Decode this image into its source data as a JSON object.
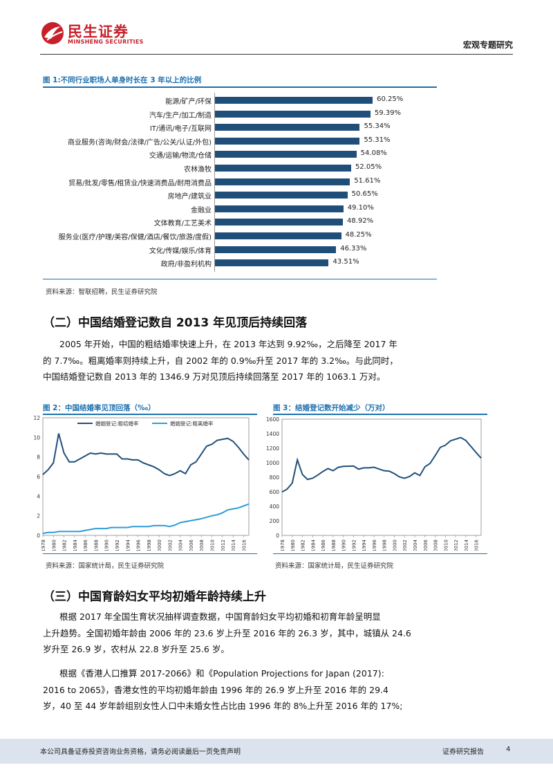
{
  "header": {
    "logo_cn": "民生证券",
    "logo_en": "MINSHENG SECURITIES",
    "title": "宏观专题研究"
  },
  "figure1": {
    "title": "图 1:不同行业职场人单身时长在 3 年以上的比例",
    "source": "资料来源：智联招聘，民生证券研究院"
  },
  "section2": {
    "heading": "（二）中国结婚登记数自 2013 年见顶后持续回落",
    "para1_line1": "2005 年开始，中国的粗结婚率快速上升，在 2013 年达到 9.92‰，之后降至 2017 年",
    "para1_line2": "的 7.7‰。粗离婚率则持续上升，自 2002 年的 0.9‰升至 2017 年的 3.2‰。与此同时，",
    "para1_line3": "中国结婚登记数自 2013 年的 1346.9 万对见顶后持续回落至 2017 年的 1063.1 万对。"
  },
  "figure2": {
    "title": "图 2：中国结婚率见顶回落（‰）",
    "source": "资料来源：国家统计局，民生证券研究院"
  },
  "figure3": {
    "title": "图 3：结婚登记数开始减少（万对）",
    "source": "资料来源：国家统计局，民生证券研究院"
  },
  "section3": {
    "heading": "（三）中国育龄妇女平均初婚年龄持续上升",
    "para1_line1": "根据 2017 年全国生育状况抽样调查数据，中国育龄妇女平均初婚和初育年龄呈明显",
    "para1_line2": "上升趋势。全国初婚年龄由 2006 年的 23.6 岁上升至 2016 年的 26.3 岁，其中，城镇从 24.6",
    "para1_line3": "岁升至 26.9 岁，农村从 22.8 岁升至 25.6 岁。",
    "para2_line1": "根据《香港人口推算 2017-2066》和《Population Projections for Japan (2017):",
    "para2_line2": "2016 to 2065》，香港女性的平均初婚年龄由 1996 年的 26.9 岁上升至 2016 年的 29.4",
    "para2_line3": "岁，40 至 44 岁年龄组别女性人口中未婚女性占比由 1996 年的 8%上升至 2016 年的 17%;"
  },
  "footer": {
    "disclaimer": "本公司具备证券投资咨询业务资格，请务必阅读最后一页免责声明",
    "report_type": "证券研究报告",
    "page": "4"
  },
  "chart_data": [
    {
      "type": "bar",
      "orientation": "horizontal",
      "categories": [
        "能源/矿产/环保",
        "汽车/生产/加工/制造",
        "IT/通讯/电子/互联网",
        "商业服务(咨询/财会/法律/广告/公关/认证/外包)",
        "交通/运输/物流/仓储",
        "农林渔牧",
        "贸易/批发/零售/租赁业/快速消费品/耐用消费品",
        "房地产/建筑业",
        "金融业",
        "文体教育/工艺美术",
        "服务业(医疗/护理/美容/保健/酒店/餐饮/旅游/度假)",
        "文化/传媒/娱乐/体育",
        "政府/非盈利机构"
      ],
      "values": [
        60.25,
        59.39,
        55.34,
        55.31,
        54.08,
        52.05,
        51.61,
        50.65,
        49.1,
        48.92,
        48.25,
        46.33,
        43.51
      ],
      "value_labels": [
        "60.25%",
        "59.39%",
        "55.34%",
        "55.31%",
        "54.08%",
        "52.05%",
        "51.61%",
        "50.65%",
        "49.10%",
        "48.92%",
        "48.25%",
        "46.33%",
        "43.51%"
      ],
      "bar_color": "#1f4e79"
    },
    {
      "type": "line",
      "x": [
        1978,
        1979,
        1980,
        1981,
        1982,
        1983,
        1984,
        1985,
        1986,
        1987,
        1988,
        1989,
        1990,
        1991,
        1992,
        1993,
        1994,
        1995,
        1996,
        1997,
        1998,
        1999,
        2000,
        2001,
        2002,
        2003,
        2004,
        2005,
        2006,
        2007,
        2008,
        2009,
        2010,
        2011,
        2012,
        2013,
        2014,
        2015,
        2016,
        2017
      ],
      "x_ticks": [
        "1978",
        "1980",
        "1982",
        "1984",
        "1986",
        "1988",
        "1990",
        "1992",
        "1994",
        "1996",
        "1998",
        "2000",
        "2002",
        "2004",
        "2006",
        "2008",
        "2010",
        "2012",
        "2014",
        "2016"
      ],
      "ylim": [
        0,
        12
      ],
      "y_ticks": [
        0,
        2,
        4,
        6,
        8,
        10,
        12
      ],
      "legend_position": "top",
      "series": [
        {
          "name": "婚姻登记:粗结婚率",
          "color": "#1f4e79",
          "values": [
            6.2,
            6.7,
            7.4,
            10.4,
            8.4,
            7.5,
            7.5,
            7.8,
            8.1,
            8.4,
            8.3,
            8.4,
            8.3,
            8.3,
            8.3,
            7.8,
            7.8,
            7.7,
            7.7,
            7.4,
            7.2,
            7.0,
            6.7,
            6.3,
            6.1,
            6.3,
            6.6,
            6.3,
            7.2,
            7.5,
            8.3,
            9.1,
            9.3,
            9.7,
            9.8,
            9.9,
            9.6,
            9.0,
            8.3,
            7.7
          ]
        },
        {
          "name": "婚姻登记:粗离婚率",
          "color": "#2e9bd6",
          "values": [
            0.2,
            0.3,
            0.3,
            0.4,
            0.4,
            0.4,
            0.4,
            0.4,
            0.5,
            0.6,
            0.7,
            0.7,
            0.7,
            0.8,
            0.8,
            0.8,
            0.8,
            0.9,
            0.9,
            0.9,
            0.9,
            1.0,
            1.0,
            1.0,
            0.9,
            1.05,
            1.3,
            1.4,
            1.5,
            1.6,
            1.7,
            1.85,
            2.0,
            2.1,
            2.3,
            2.6,
            2.7,
            2.8,
            3.0,
            3.2
          ]
        }
      ]
    },
    {
      "type": "line",
      "x": [
        1978,
        1979,
        1980,
        1981,
        1982,
        1983,
        1984,
        1985,
        1986,
        1987,
        1988,
        1989,
        1990,
        1991,
        1992,
        1993,
        1994,
        1995,
        1996,
        1997,
        1998,
        1999,
        2000,
        2001,
        2002,
        2003,
        2004,
        2005,
        2006,
        2007,
        2008,
        2009,
        2010,
        2011,
        2012,
        2013,
        2014,
        2015,
        2016,
        2017
      ],
      "x_ticks": [
        "1978",
        "1980",
        "1982",
        "1984",
        "1986",
        "1988",
        "1990",
        "1992",
        "1994",
        "1996",
        "1998",
        "2000",
        "2002",
        "2004",
        "2006",
        "2008",
        "2010",
        "2012",
        "2014",
        "2016"
      ],
      "ylim": [
        0,
        1600
      ],
      "y_ticks": [
        0,
        200,
        400,
        600,
        800,
        1000,
        1200,
        1400,
        1600
      ],
      "series": [
        {
          "color": "#1f4e79",
          "values": [
            597,
            637,
            720,
            1040,
            837,
            770,
            787,
            830,
            880,
            920,
            890,
            937,
            950,
            952,
            955,
            912,
            930,
            930,
            938,
            914,
            890,
            885,
            850,
            805,
            786,
            811,
            861,
            824,
            945,
            991,
            1098,
            1212,
            1241,
            1302,
            1324,
            1347,
            1307,
            1225,
            1142,
            1063
          ]
        }
      ]
    }
  ]
}
